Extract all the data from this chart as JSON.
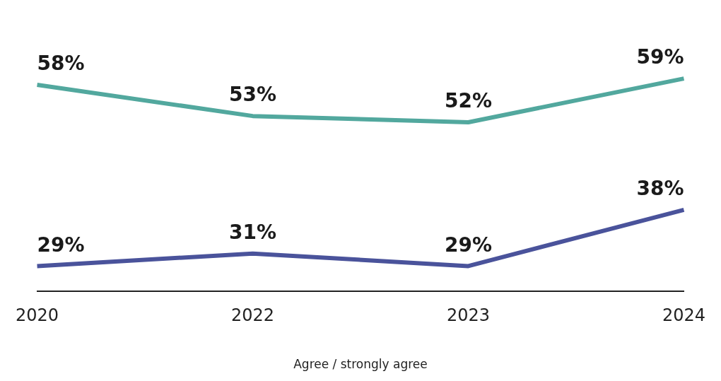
{
  "chart_data": {
    "type": "line",
    "xlabel": "Agree / strongly agree",
    "categories": [
      "2020",
      "2022",
      "2023",
      "2024"
    ],
    "series": [
      {
        "color": "#52a89e",
        "values": [
          58,
          53,
          52,
          59
        ],
        "value_labels": [
          "58%",
          "53%",
          "52%",
          "59%"
        ]
      },
      {
        "color": "#4a539b",
        "values": [
          29,
          31,
          29,
          38
        ],
        "value_labels": [
          "29%",
          "31%",
          "29%",
          "38%"
        ]
      }
    ],
    "tick_labels": "x",
    "marker": "none",
    "legend": false
  }
}
